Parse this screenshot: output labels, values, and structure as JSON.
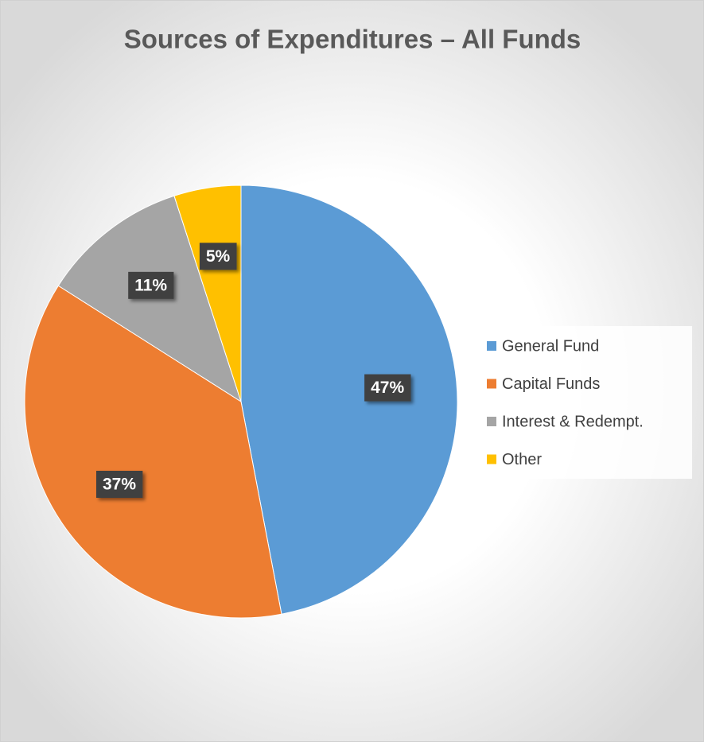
{
  "chart_data": {
    "type": "pie",
    "title": "Sources of Expenditures – All Funds",
    "categories": [
      "General Fund",
      "Capital Funds",
      "Interest & Redempt.",
      "Other"
    ],
    "values": [
      47,
      37,
      11,
      5
    ],
    "value_labels": [
      "47%",
      "37%",
      "11%",
      "5%"
    ],
    "colors": [
      "#5b9bd5",
      "#ed7d31",
      "#a5a5a5",
      "#ffc000"
    ],
    "legend": "right"
  }
}
